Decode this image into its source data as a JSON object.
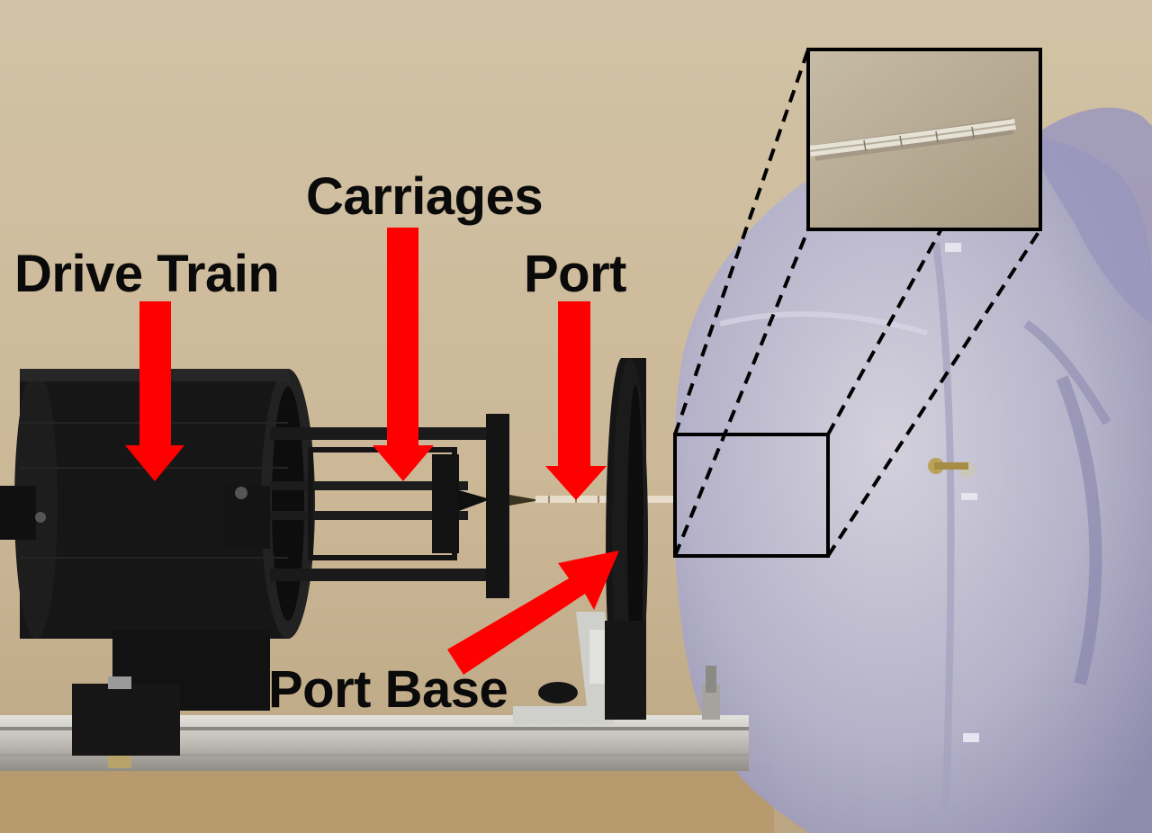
{
  "labels": {
    "drive_train": "Drive Train",
    "carriages": "Carriages",
    "port": "Port",
    "port_base": "Port Base"
  },
  "colors": {
    "annotation_arrow": "#ff0000",
    "annotation_text": "#0a0a0a",
    "background_wall": "#cbb89a",
    "device_body": "#1a1a1a",
    "phantom_heart": "#b7b6cc",
    "inset_border": "#000000"
  }
}
